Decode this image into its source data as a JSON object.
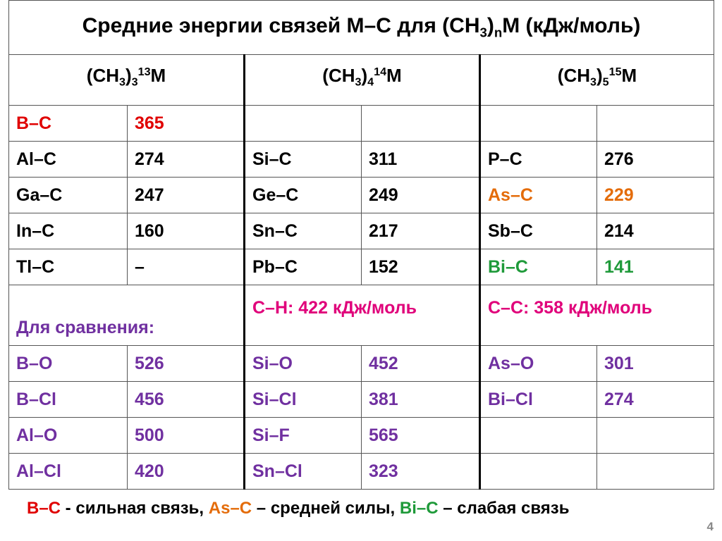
{
  "title": [
    "Средние энергии связей M–C для (CH",
    "3",
    ")",
    "n",
    "M (кДж/моль)"
  ],
  "table": {
    "headers": [
      [
        "(CH",
        "3",
        ")",
        "3",
        "13",
        "M"
      ],
      [
        "(CH",
        "3",
        ")",
        "4",
        "14",
        "M"
      ],
      [
        "(CH",
        "3",
        ")",
        "5",
        "15",
        "M"
      ]
    ],
    "rows": [
      [
        {
          "bond": "B–C",
          "value": 365,
          "color": "#e00000"
        },
        null,
        null
      ],
      [
        {
          "bond": "Al–C",
          "value": 274
        },
        {
          "bond": "Si–C",
          "value": 311
        },
        {
          "bond": "P–C",
          "value": 276
        }
      ],
      [
        {
          "bond": "Ga–C",
          "value": 247
        },
        {
          "bond": "Ge–C",
          "value": 249
        },
        {
          "bond": "As–C",
          "value": 229,
          "color": "#e46c0a"
        }
      ],
      [
        {
          "bond": "In–C",
          "value": 160
        },
        {
          "bond": "Sn–C",
          "value": 217
        },
        {
          "bond": "Sb–C",
          "value": 214
        }
      ],
      [
        {
          "bond": "Tl–C",
          "value": "–"
        },
        {
          "bond": "Pb–C",
          "value": 152
        },
        {
          "bond": "Bi–C",
          "value": 141,
          "color": "#1f9a3a"
        }
      ]
    ],
    "comparison": {
      "label": "Для сравнения:",
      "color": "#7030a0",
      "notes": [
        {
          "text": "C–H:  422 кДж/моль",
          "color": "#e0007a"
        },
        {
          "text": "C–C:  358 кДж/моль",
          "color": "#e0007a"
        }
      ],
      "rows": [
        [
          {
            "bond": "B–O",
            "value": 526
          },
          {
            "bond": "Si–O",
            "value": 452
          },
          {
            "bond": "As–O",
            "value": 301
          }
        ],
        [
          {
            "bond": "B–Cl",
            "value": 456
          },
          {
            "bond": "Si–Cl",
            "value": 381
          },
          {
            "bond": "Bi–Cl",
            "value": 274
          }
        ],
        [
          {
            "bond": "Al–O",
            "value": 500
          },
          {
            "bond": "Si–F",
            "value": 565
          },
          null
        ],
        [
          {
            "bond": "Al–Cl",
            "value": 420
          },
          {
            "bond": "Sn–Cl",
            "value": 323
          },
          null
        ]
      ]
    }
  },
  "footer": [
    {
      "text": "B–C",
      "color": "#e00000"
    },
    {
      "text": " - сильная связь, "
    },
    {
      "text": "As–C",
      "color": "#e46c0a"
    },
    {
      "text": " – средней силы, "
    },
    {
      "text": "Bi–C",
      "color": "#1f9a3a"
    },
    {
      "text": " – слабая связь"
    }
  ],
  "page_number": 4
}
